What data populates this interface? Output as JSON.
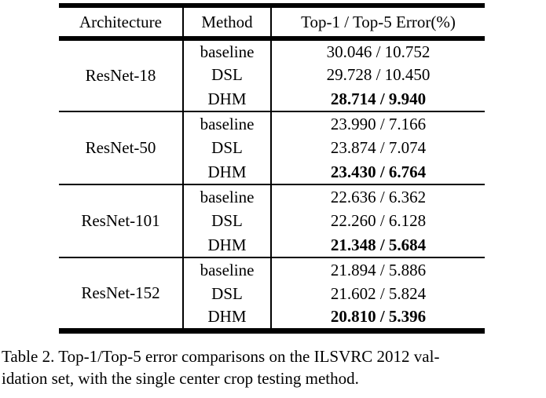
{
  "table": {
    "headers": [
      "Architecture",
      "Method",
      "Top-1 / Top-5 Error(%)"
    ],
    "groups": [
      {
        "architecture": "ResNet-18",
        "rows": [
          {
            "method": "baseline",
            "error": "30.046 / 10.752"
          },
          {
            "method": "DSL",
            "error": "29.728 / 10.450"
          },
          {
            "method": "DHM",
            "error": "28.714 / 9.940"
          }
        ]
      },
      {
        "architecture": "ResNet-50",
        "rows": [
          {
            "method": "baseline",
            "error": "23.990 / 7.166"
          },
          {
            "method": "DSL",
            "error": "23.874 / 7.074"
          },
          {
            "method": "DHM",
            "error": "23.430 / 6.764"
          }
        ]
      },
      {
        "architecture": "ResNet-101",
        "rows": [
          {
            "method": "baseline",
            "error": "22.636 / 6.362"
          },
          {
            "method": "DSL",
            "error": "22.260 / 6.128"
          },
          {
            "method": "DHM",
            "error": "21.348 / 5.684"
          }
        ]
      },
      {
        "architecture": "ResNet-152",
        "rows": [
          {
            "method": "baseline",
            "error": "21.894 / 5.886"
          },
          {
            "method": "DSL",
            "error": "21.602 / 5.824"
          },
          {
            "method": "DHM",
            "error": "20.810 / 5.396"
          }
        ]
      }
    ]
  },
  "caption": {
    "line1": "Table 2. Top-1/Top-5 error comparisons on the ILSVRC 2012 val-",
    "line2": "idation set, with the single center crop testing method."
  },
  "colors": {
    "text": "#000000",
    "background": "#ffffff"
  }
}
